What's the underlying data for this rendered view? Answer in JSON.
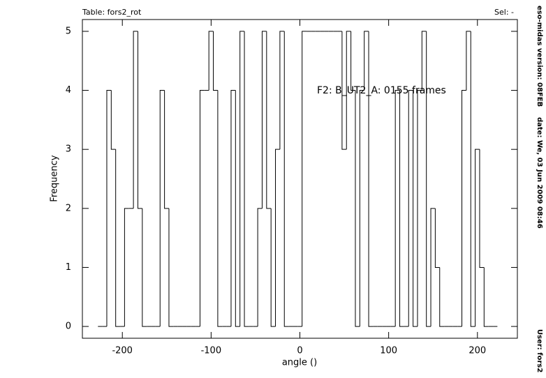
{
  "chart_data": {
    "type": "histogram",
    "title": "Table: fors2_rot",
    "selection": "Sel: -",
    "annotation": "F2: B_UT2_A: 0155 frames",
    "xlabel": "angle ()",
    "ylabel": "Frequency",
    "side_info": [
      "eso-midas version: 08FEB",
      "date: We, 03 Jun 2009 08:46",
      "User: fors2"
    ],
    "bins": [
      -227.5,
      -222.5,
      -217.5,
      -212.5,
      -207.5,
      -202.5,
      -197.5,
      -192.5,
      -187.5,
      -182.5,
      -177.5,
      -172.5,
      -167.5,
      -162.5,
      -157.5,
      -152.5,
      -147.5,
      -142.5,
      -137.5,
      -132.5,
      -127.5,
      -122.5,
      -117.5,
      -112.5,
      -107.5,
      -102.5,
      -97.5,
      -92.5,
      -87.5,
      -82.5,
      -77.5,
      -72.5,
      -67.5,
      -62.5,
      -57.5,
      -52.5,
      -47.5,
      -42.5,
      -37.5,
      -32.5,
      -27.5,
      -22.5,
      -17.5,
      -12.5,
      -7.5,
      -2.5,
      2.5,
      7.5,
      12.5,
      17.5,
      22.5,
      27.5,
      32.5,
      37.5,
      42.5,
      47.5,
      52.5,
      57.5,
      62.5,
      67.5,
      72.5,
      77.5,
      82.5,
      87.5,
      92.5,
      97.5,
      102.5,
      107.5,
      112.5,
      117.5,
      122.5,
      127.5,
      132.5,
      137.5,
      142.5,
      147.5,
      152.5,
      157.5,
      162.5,
      167.5,
      172.5,
      177.5,
      182.5,
      187.5,
      192.5,
      197.5,
      202.5,
      207.5,
      212.5,
      217.5,
      222.5
    ],
    "values": [
      0,
      0,
      4,
      3,
      0,
      0,
      2,
      2,
      5,
      2,
      0,
      0,
      0,
      0,
      4,
      2,
      0,
      0,
      0,
      0,
      0,
      0,
      0,
      4,
      4,
      5,
      4,
      0,
      0,
      0,
      4,
      0,
      5,
      0,
      0,
      0,
      2,
      5,
      2,
      0,
      3,
      5,
      0,
      0,
      0,
      0,
      5,
      5,
      5,
      5,
      5,
      5,
      5,
      5,
      5,
      3,
      5,
      4,
      0,
      4,
      5,
      0,
      0,
      0,
      0,
      0,
      0,
      4,
      0,
      0,
      4,
      0,
      4,
      5,
      0,
      2,
      1,
      0,
      0,
      0,
      0,
      0,
      4,
      5,
      0,
      3,
      1,
      0,
      0,
      0
    ],
    "color": "#000000",
    "xlim": [
      -245,
      245
    ],
    "xticks": [
      -200,
      -100,
      0,
      100,
      200
    ],
    "ylim": [
      -0.2,
      5.2
    ],
    "yticks": [
      0,
      1,
      2,
      3,
      4,
      5
    ]
  }
}
